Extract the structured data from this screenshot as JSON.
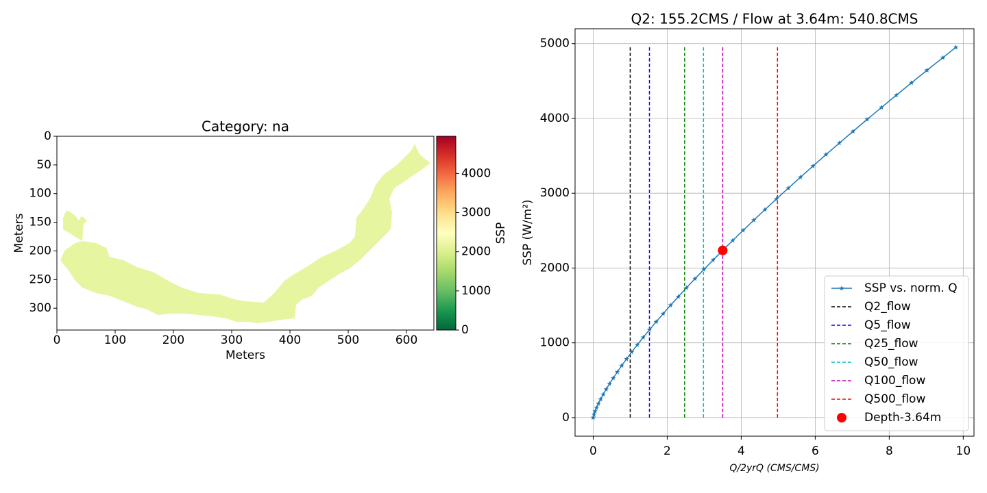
{
  "chart_data": [
    {
      "type": "heatmap",
      "title": "Category: na",
      "xlabel": "Meters",
      "ylabel": "Meters",
      "xlim": [
        0,
        647
      ],
      "ylim": [
        338,
        0
      ],
      "xticks": [
        0,
        100,
        200,
        300,
        400,
        500,
        600
      ],
      "yticks": [
        0,
        50,
        100,
        150,
        200,
        250,
        300
      ],
      "color": "#e5f5a0",
      "colorbar": {
        "label": "SSP",
        "lim": [
          0,
          4951
        ],
        "ticks": [
          0,
          1000,
          2000,
          3000,
          4000
        ],
        "colormap": [
          "#006837",
          "#1a9850",
          "#66bd63",
          "#a6d96a",
          "#d9ef8b",
          "#ffffbf",
          "#fee08b",
          "#fdae61",
          "#f46d43",
          "#d73027",
          "#a50026"
        ]
      }
    },
    {
      "type": "line",
      "title": "Q2: 155.2CMS / Flow at 3.64m: 540.8CMS",
      "xlabel": "Q/2yrQ (CMS/CMS)",
      "ylabel": "SSP (W/m²)",
      "x": [
        0,
        0.02,
        0.05,
        0.09,
        0.14,
        0.2,
        0.27,
        0.35,
        0.44,
        0.54,
        0.65,
        0.77,
        0.9,
        1.04,
        1.19,
        1.35,
        1.52,
        1.7,
        1.89,
        2.09,
        2.3,
        2.52,
        2.75,
        2.99,
        3.24,
        3.5,
        3.77,
        4.05,
        4.34,
        4.64,
        4.95,
        5.27,
        5.6,
        5.94,
        6.29,
        6.65,
        7.02,
        7.4,
        7.79,
        8.19,
        8.6,
        9.02,
        9.45,
        9.8
      ],
      "series": [
        {
          "name": "SSP vs. norm. Q",
          "color": "#1f77b4",
          "values": [
            0,
            41,
            84,
            132,
            186,
            245,
            309,
            378,
            451,
            528,
            609,
            695,
            784,
            876,
            972,
            1072,
            1174,
            1280,
            1389,
            1502,
            1617,
            1735,
            1856,
            1980,
            2107,
            2236,
            2368,
            2503,
            2640,
            2780,
            2922,
            3067,
            3214,
            3363,
            3516,
            3670,
            3827,
            3986,
            4147,
            4310,
            4476,
            4644,
            4813,
            4951
          ]
        }
      ],
      "vlines": [
        {
          "name": "Q2_flow",
          "x": 1,
          "color": "#000000"
        },
        {
          "name": "Q5_flow",
          "x": 1.52,
          "color": "#0000ff"
        },
        {
          "name": "Q25_flow",
          "x": 2.47,
          "color": "#008000"
        },
        {
          "name": "Q50_flow",
          "x": 2.98,
          "color": "#00bfbf"
        },
        {
          "name": "Q100_flow",
          "x": 3.5,
          "color": "#bf00bf"
        },
        {
          "name": "Q500_flow",
          "x": 4.98,
          "color": "#ff0000"
        }
      ],
      "point": {
        "name": "Depth-3.64m",
        "x": 3.5,
        "y": 2236,
        "color": "#ff0000"
      },
      "xlim": [
        -0.49,
        10.29
      ],
      "ylim": [
        -248,
        5199
      ],
      "xticks": [
        0,
        2,
        4,
        6,
        8,
        10
      ],
      "yticks": [
        0,
        1000,
        2000,
        3000,
        4000,
        5000
      ],
      "grid": true,
      "legend": "lower right"
    }
  ]
}
